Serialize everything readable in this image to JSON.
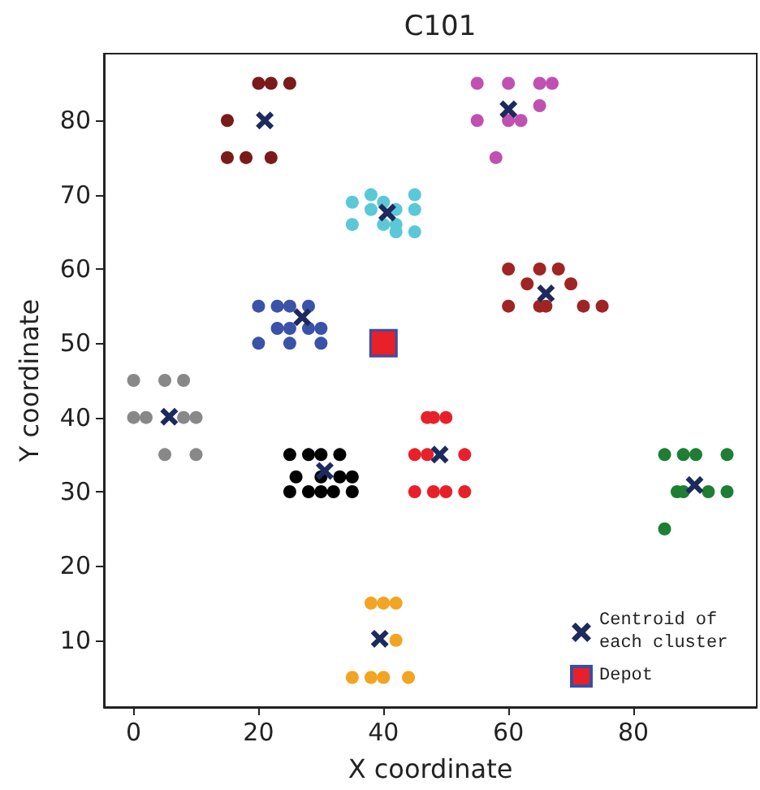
{
  "chart_data": {
    "type": "scatter",
    "title": "C101",
    "xlabel": "X coordinate",
    "ylabel": "Y coordinate",
    "xlim": [
      -4.75,
      99.75
    ],
    "ylim": [
      1,
      89
    ],
    "xticks": [
      0,
      20,
      40,
      60,
      80
    ],
    "yticks": [
      10,
      20,
      30,
      40,
      50,
      60,
      70,
      80
    ],
    "grid": false,
    "legend": "bottom right",
    "marker": "circle",
    "series": [
      {
        "color": "#7b1a1a",
        "x": [
          25,
          22,
          20,
          15,
          15,
          18,
          22
        ],
        "values": [
          85,
          85,
          85,
          80,
          75,
          75,
          75
        ]
      },
      {
        "color": "#5bc8d8",
        "x": [
          35,
          35,
          38,
          38,
          40,
          40,
          42,
          42,
          42,
          45,
          45,
          45
        ],
        "values": [
          69,
          66,
          70,
          68,
          69,
          66,
          68,
          66,
          65,
          70,
          68,
          65
        ]
      },
      {
        "color": "#3a52a8",
        "x": [
          20,
          23,
          25,
          28,
          23,
          25,
          28,
          30,
          20,
          25,
          30
        ],
        "values": [
          55,
          55,
          55,
          55,
          52,
          52,
          52,
          52,
          50,
          50,
          50
        ]
      },
      {
        "color": "#c150b3",
        "x": [
          55,
          60,
          65,
          67,
          65,
          55,
          60,
          62,
          58
        ],
        "values": [
          85,
          85,
          85,
          85,
          82,
          80,
          80,
          80,
          75
        ]
      },
      {
        "color": "#a02424",
        "x": [
          60,
          65,
          68,
          63,
          70,
          60,
          65,
          66,
          72,
          75
        ],
        "values": [
          60,
          60,
          60,
          58,
          58,
          55,
          55,
          55,
          55,
          55
        ]
      },
      {
        "color": "#888888",
        "x": [
          0,
          5,
          8,
          0,
          2,
          8,
          10,
          5,
          10
        ],
        "values": [
          45,
          45,
          45,
          40,
          40,
          40,
          40,
          35,
          35
        ]
      },
      {
        "color": "#000000",
        "x": [
          25,
          28,
          30,
          33,
          26,
          30,
          33,
          35,
          25,
          28,
          30,
          32,
          35
        ],
        "values": [
          35,
          35,
          35,
          35,
          32,
          32,
          32,
          32,
          30,
          30,
          30,
          30,
          30
        ]
      },
      {
        "color": "#e8202a",
        "x": [
          47,
          48,
          50,
          45,
          47,
          53,
          45,
          48,
          50,
          53
        ],
        "values": [
          40,
          40,
          40,
          35,
          35,
          35,
          30,
          30,
          30,
          30
        ]
      },
      {
        "color": "#f2a422",
        "x": [
          38,
          40,
          42,
          42,
          35,
          38,
          40,
          44
        ],
        "values": [
          15,
          15,
          15,
          10,
          5,
          5,
          5,
          5
        ]
      },
      {
        "color": "#1e7e34",
        "x": [
          85,
          88,
          90,
          95,
          87,
          88,
          92,
          95,
          85
        ],
        "values": [
          35,
          35,
          35,
          35,
          30,
          30,
          30,
          30,
          25
        ]
      },
      {
        "name": "Centroid of each cluster",
        "color": "#1c2a5e",
        "marker": "cross",
        "x": [
          21,
          40.6,
          27,
          60,
          66,
          5.7,
          30.6,
          49,
          39.4,
          89.8
        ],
        "values": [
          80,
          67.6,
          53.5,
          81.5,
          56.7,
          40.1,
          32.8,
          35,
          10.2,
          30.9
        ]
      },
      {
        "name": "Depot",
        "color": "#e8202a",
        "marker": "square",
        "x": [
          40
        ],
        "values": [
          50
        ]
      }
    ]
  }
}
